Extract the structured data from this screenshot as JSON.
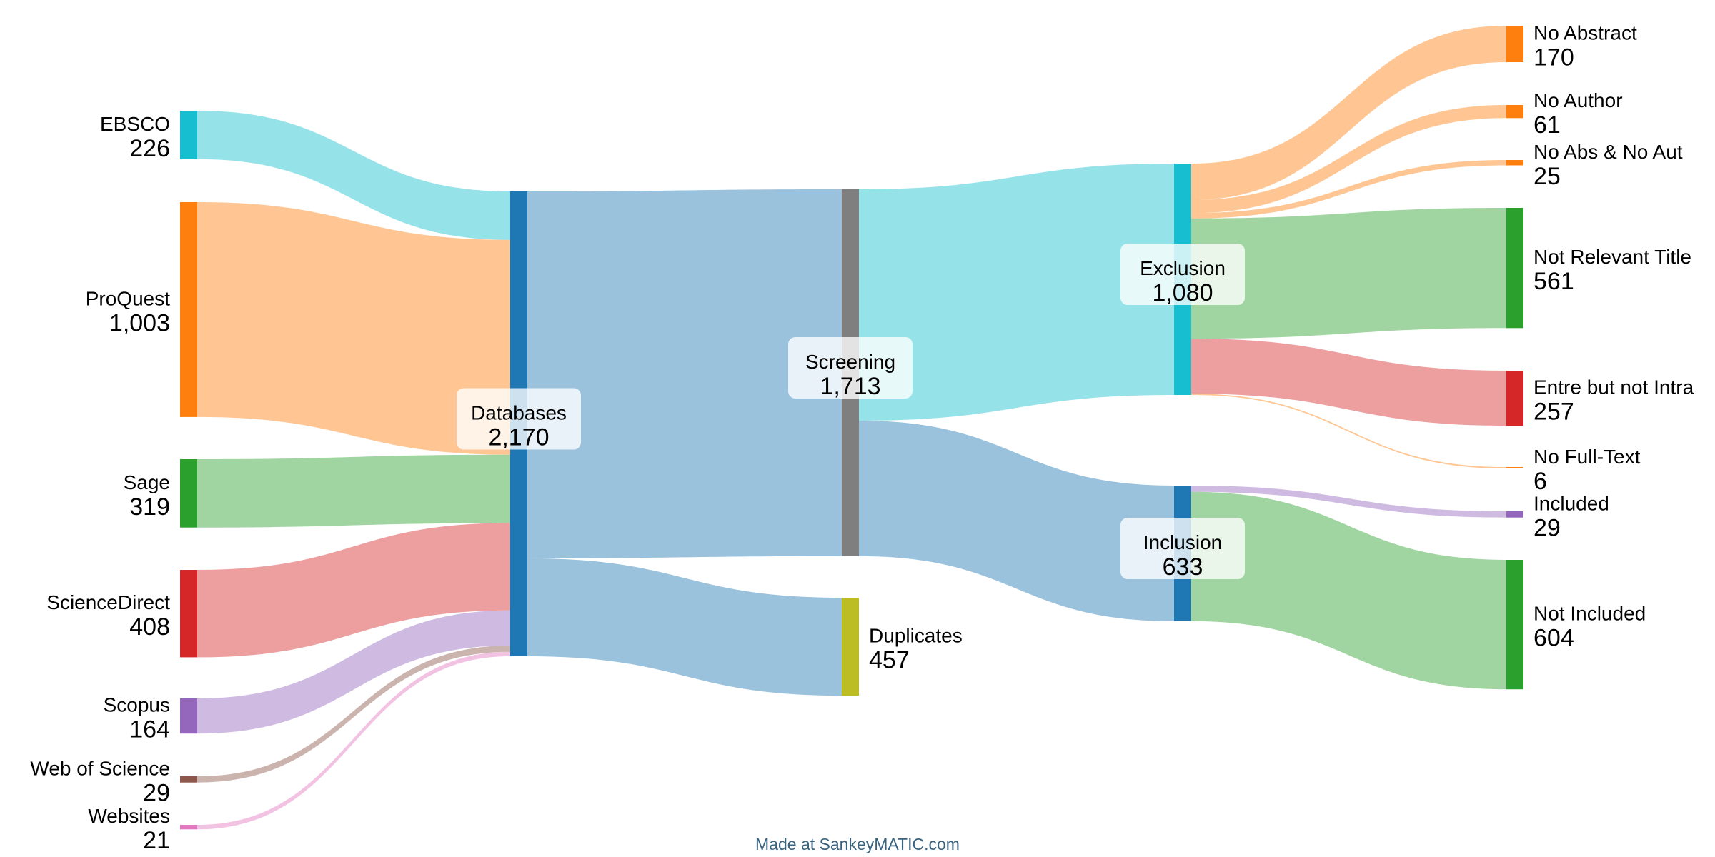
{
  "footer_text": "Made at SankeyMATIC.com",
  "chart_data": {
    "type": "sankey",
    "title": "",
    "nodes": [
      {
        "id": "ebsco",
        "name": "EBSCO",
        "value_label": "226",
        "value": 226,
        "color": "#17becf"
      },
      {
        "id": "proquest",
        "name": "ProQuest",
        "value_label": "1,003",
        "value": 1003,
        "color": "#ff7f0e"
      },
      {
        "id": "sage",
        "name": "Sage",
        "value_label": "319",
        "value": 319,
        "color": "#2ca02c"
      },
      {
        "id": "sciencedirect",
        "name": "ScienceDirect",
        "value_label": "408",
        "value": 408,
        "color": "#d62728"
      },
      {
        "id": "scopus",
        "name": "Scopus",
        "value_label": "164",
        "value": 164,
        "color": "#9467bd"
      },
      {
        "id": "wos",
        "name": "Web of Science",
        "value_label": "29",
        "value": 29,
        "color": "#8c564b"
      },
      {
        "id": "websites",
        "name": "Websites",
        "value_label": "21",
        "value": 21,
        "color": "#e377c2"
      },
      {
        "id": "databases",
        "name": "Databases",
        "value_label": "2,170",
        "value": 2170,
        "color": "#1f77b4"
      },
      {
        "id": "screening",
        "name": "Screening",
        "value_label": "1,713",
        "value": 1713,
        "color": "#7f7f7f"
      },
      {
        "id": "duplicates",
        "name": "Duplicates",
        "value_label": "457",
        "value": 457,
        "color": "#bcbd22"
      },
      {
        "id": "exclusion",
        "name": "Exclusion",
        "value_label": "1,080",
        "value": 1080,
        "color": "#17becf"
      },
      {
        "id": "inclusion",
        "name": "Inclusion",
        "value_label": "633",
        "value": 633,
        "color": "#1f77b4"
      },
      {
        "id": "no_abstract",
        "name": "No Abstract",
        "value_label": "170",
        "value": 170,
        "color": "#ff7f0e"
      },
      {
        "id": "no_author",
        "name": "No Author",
        "value_label": "61",
        "value": 61,
        "color": "#ff7f0e"
      },
      {
        "id": "no_abs_aut",
        "name": "No Abs & No Aut",
        "value_label": "25",
        "value": 25,
        "color": "#ff7f0e"
      },
      {
        "id": "not_relevant",
        "name": "Not Relevant Title",
        "value_label": "561",
        "value": 561,
        "color": "#2ca02c"
      },
      {
        "id": "entre",
        "name": "Entre but not Intra",
        "value_label": "257",
        "value": 257,
        "color": "#d62728"
      },
      {
        "id": "no_fulltext",
        "name": "No Full-Text",
        "value_label": "6",
        "value": 6,
        "color": "#ff7f0e"
      },
      {
        "id": "included",
        "name": "Included",
        "value_label": "29",
        "value": 29,
        "color": "#9467bd"
      },
      {
        "id": "not_included",
        "name": "Not Included",
        "value_label": "604",
        "value": 604,
        "color": "#2ca02c"
      }
    ],
    "links": [
      {
        "source": "ebsco",
        "target": "databases",
        "value": 226
      },
      {
        "source": "proquest",
        "target": "databases",
        "value": 1003
      },
      {
        "source": "sage",
        "target": "databases",
        "value": 319
      },
      {
        "source": "sciencedirect",
        "target": "databases",
        "value": 408
      },
      {
        "source": "scopus",
        "target": "databases",
        "value": 164
      },
      {
        "source": "wos",
        "target": "databases",
        "value": 29
      },
      {
        "source": "websites",
        "target": "databases",
        "value": 21
      },
      {
        "source": "databases",
        "target": "screening",
        "value": 1713
      },
      {
        "source": "databases",
        "target": "duplicates",
        "value": 457
      },
      {
        "source": "screening",
        "target": "exclusion",
        "value": 1080
      },
      {
        "source": "screening",
        "target": "inclusion",
        "value": 633
      },
      {
        "source": "exclusion",
        "target": "no_abstract",
        "value": 170
      },
      {
        "source": "exclusion",
        "target": "no_author",
        "value": 61
      },
      {
        "source": "exclusion",
        "target": "no_abs_aut",
        "value": 25
      },
      {
        "source": "exclusion",
        "target": "not_relevant",
        "value": 561
      },
      {
        "source": "exclusion",
        "target": "entre",
        "value": 257
      },
      {
        "source": "exclusion",
        "target": "no_fulltext",
        "value": 6
      },
      {
        "source": "inclusion",
        "target": "included",
        "value": 29
      },
      {
        "source": "inclusion",
        "target": "not_included",
        "value": 604
      }
    ]
  }
}
